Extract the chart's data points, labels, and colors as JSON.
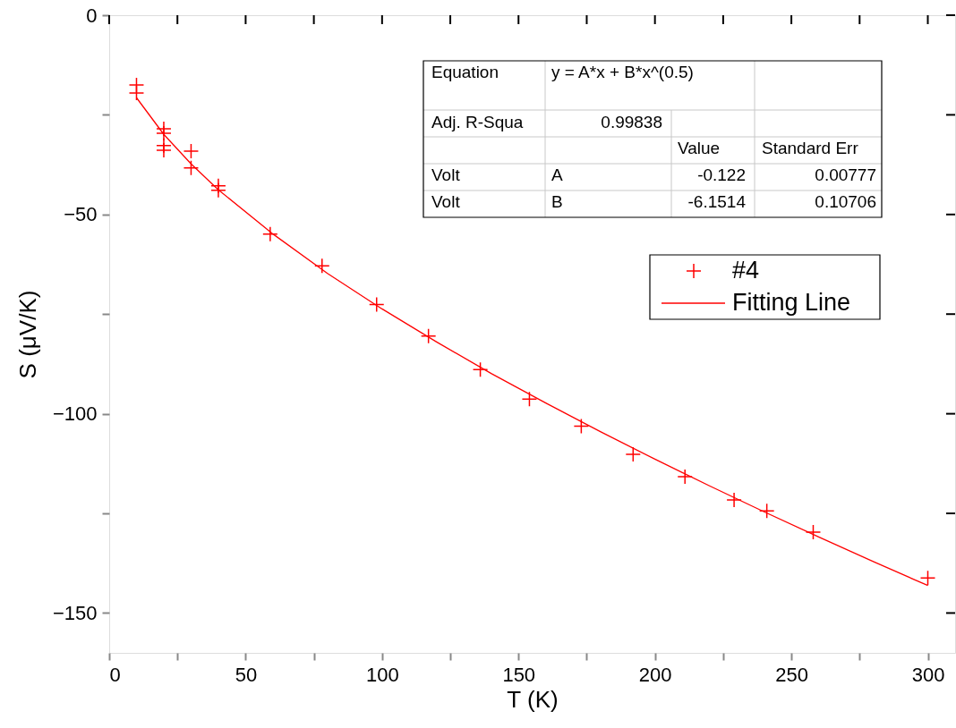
{
  "chart_data": {
    "type": "scatter",
    "xlabel": "T (K)",
    "ylabel": "S (μV/K)",
    "xlim": [
      0,
      310
    ],
    "ylim": [
      -160,
      0
    ],
    "xticks": [
      0,
      {
        "value": 25,
        "label": null
      },
      50,
      {
        "value": 75,
        "label": null
      },
      100,
      {
        "value": 125,
        "label": null
      },
      150,
      {
        "value": 175,
        "label": null
      },
      200,
      {
        "value": 225,
        "label": null
      },
      250,
      {
        "value": 275,
        "label": null
      },
      300
    ],
    "yticks": [
      0,
      {
        "value": -25,
        "label": null
      },
      -50,
      {
        "value": -75,
        "label": null
      },
      -100,
      {
        "value": -125,
        "label": null
      },
      -150
    ],
    "grid": false,
    "legend": "right",
    "series": [
      {
        "name": "#4",
        "type": "scatter",
        "marker": "cross",
        "color": "#ff0000",
        "x": [
          10,
          10,
          20,
          20,
          20,
          20,
          30,
          30,
          40,
          40,
          59,
          78,
          98,
          117,
          136,
          154,
          173,
          192,
          211,
          229,
          241,
          258,
          300
        ],
        "values": [
          -17.5,
          -19.5,
          -28.5,
          -29.6,
          -32.7,
          -33.9,
          -34.1,
          -38.3,
          -42.8,
          -43.9,
          -54.9,
          -62.9,
          -72.6,
          -80.5,
          -88.9,
          -96.3,
          -103.1,
          -110.2,
          -115.8,
          -121.6,
          -124.4,
          -129.7,
          -141.2
        ]
      },
      {
        "name": "Fitting Line",
        "type": "line",
        "marker": "none",
        "line_style": "solid",
        "color": "#ff0000",
        "x": [
          10,
          20,
          30,
          40,
          60,
          80,
          100,
          120,
          140,
          160,
          180,
          200,
          220,
          240,
          260,
          280,
          300
        ],
        "values": [
          -20.7,
          -29.9,
          -37.3,
          -43.8,
          -54.9,
          -64.8,
          -73.7,
          -82.0,
          -89.9,
          -97.3,
          -104.5,
          -111.4,
          -118.1,
          -124.6,
          -130.9,
          -137.1,
          -143.1
        ]
      }
    ],
    "annotations": [
      "Equation",
      "y = A*x + B*x^(0.5)",
      "Adj. R-Squa",
      "0.99838",
      "Value",
      "Standard Err",
      "Volt",
      "A",
      "-0.122",
      "0.00777",
      "Volt",
      "B",
      "-6.1514",
      "0.10706"
    ]
  }
}
